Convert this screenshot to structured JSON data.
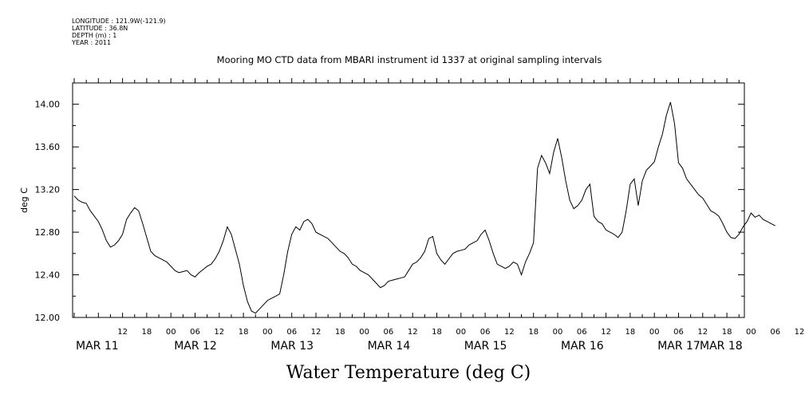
{
  "meta": {
    "longitude": "LONGITUDE : 121.9W(-121.9)",
    "latitude": "LATITUDE : 36.8N",
    "depth": "DEPTH (m) : 1",
    "year": "YEAR : 2011"
  },
  "chart_data": {
    "type": "line",
    "title": "Mooring MO CTD data from MBARI instrument id 1337 at original sampling intervals",
    "footer_title": "Water Temperature (deg C)",
    "xlabel": "",
    "ylabel": "deg C",
    "ylim": [
      12.0,
      14.2
    ],
    "yticks": [
      "12.00",
      "12.40",
      "12.80",
      "13.20",
      "13.60",
      "14.00"
    ],
    "xlim_hours_from_mar11_00": [
      0,
      174
    ],
    "xtick_hour_labels": [
      "12",
      "18",
      "00",
      "06",
      "12",
      "18",
      "00",
      "06",
      "12",
      "18",
      "00",
      "06",
      "12",
      "18",
      "00",
      "06",
      "12",
      "18",
      "00",
      "06",
      "12",
      "18",
      "00",
      "06",
      "12",
      "18",
      "00",
      "06",
      "12",
      "18",
      "00",
      "06"
    ],
    "date_labels": [
      "MAR 11",
      "MAR 12",
      "MAR 13",
      "MAR 14",
      "MAR 15",
      "MAR 16",
      "MAR 17",
      "MAR 18"
    ],
    "grid": false,
    "series": [
      {
        "values": [
          [
            0,
            13.14
          ],
          [
            1,
            13.1
          ],
          [
            2,
            13.08
          ],
          [
            3,
            13.07
          ],
          [
            4,
            13.0
          ],
          [
            5,
            12.95
          ],
          [
            6,
            12.9
          ],
          [
            7,
            12.82
          ],
          [
            8,
            12.72
          ],
          [
            9,
            12.66
          ],
          [
            10,
            12.68
          ],
          [
            11,
            12.72
          ],
          [
            12,
            12.78
          ],
          [
            13,
            12.92
          ],
          [
            14,
            12.98
          ],
          [
            15,
            13.03
          ],
          [
            16,
            13.0
          ],
          [
            17,
            12.88
          ],
          [
            18,
            12.75
          ],
          [
            19,
            12.62
          ],
          [
            20,
            12.58
          ],
          [
            21,
            12.56
          ],
          [
            22,
            12.54
          ],
          [
            23,
            12.52
          ],
          [
            24,
            12.48
          ],
          [
            25,
            12.44
          ],
          [
            26,
            12.42
          ],
          [
            27,
            12.43
          ],
          [
            28,
            12.44
          ],
          [
            29,
            12.4
          ],
          [
            30,
            12.38
          ],
          [
            31,
            12.42
          ],
          [
            32,
            12.45
          ],
          [
            33,
            12.48
          ],
          [
            34,
            12.5
          ],
          [
            35,
            12.55
          ],
          [
            36,
            12.62
          ],
          [
            37,
            12.72
          ],
          [
            38,
            12.85
          ],
          [
            39,
            12.78
          ],
          [
            40,
            12.64
          ],
          [
            41,
            12.5
          ],
          [
            42,
            12.3
          ],
          [
            43,
            12.15
          ],
          [
            44,
            12.06
          ],
          [
            45,
            12.04
          ],
          [
            46,
            12.08
          ],
          [
            47,
            12.12
          ],
          [
            48,
            12.16
          ],
          [
            49,
            12.18
          ],
          [
            50,
            12.2
          ],
          [
            51,
            12.22
          ],
          [
            52,
            12.4
          ],
          [
            53,
            12.62
          ],
          [
            54,
            12.78
          ],
          [
            55,
            12.85
          ],
          [
            56,
            12.82
          ],
          [
            57,
            12.9
          ],
          [
            58,
            12.92
          ],
          [
            59,
            12.88
          ],
          [
            60,
            12.8
          ],
          [
            61,
            12.78
          ],
          [
            62,
            12.76
          ],
          [
            63,
            12.74
          ],
          [
            64,
            12.7
          ],
          [
            65,
            12.66
          ],
          [
            66,
            12.62
          ],
          [
            67,
            12.6
          ],
          [
            68,
            12.56
          ],
          [
            69,
            12.5
          ],
          [
            70,
            12.48
          ],
          [
            71,
            12.44
          ],
          [
            72,
            12.42
          ],
          [
            73,
            12.4
          ],
          [
            74,
            12.36
          ],
          [
            75,
            12.32
          ],
          [
            76,
            12.28
          ],
          [
            77,
            12.3
          ],
          [
            78,
            12.34
          ],
          [
            79,
            12.35
          ],
          [
            80,
            12.36
          ],
          [
            81,
            12.37
          ],
          [
            82,
            12.38
          ],
          [
            83,
            12.44
          ],
          [
            84,
            12.5
          ],
          [
            85,
            12.52
          ],
          [
            86,
            12.56
          ],
          [
            87,
            12.62
          ],
          [
            88,
            12.74
          ],
          [
            89,
            12.76
          ],
          [
            90,
            12.6
          ],
          [
            91,
            12.54
          ],
          [
            92,
            12.5
          ],
          [
            93,
            12.55
          ],
          [
            94,
            12.6
          ],
          [
            95,
            12.62
          ],
          [
            96,
            12.63
          ],
          [
            97,
            12.64
          ],
          [
            98,
            12.68
          ],
          [
            99,
            12.7
          ],
          [
            100,
            12.72
          ],
          [
            101,
            12.78
          ],
          [
            102,
            12.82
          ],
          [
            103,
            12.72
          ],
          [
            104,
            12.6
          ],
          [
            105,
            12.5
          ],
          [
            106,
            12.48
          ],
          [
            107,
            12.46
          ],
          [
            108,
            12.48
          ],
          [
            109,
            12.52
          ],
          [
            110,
            12.5
          ],
          [
            111,
            12.4
          ],
          [
            112,
            12.52
          ],
          [
            113,
            12.6
          ],
          [
            114,
            12.7
          ],
          [
            115,
            13.4
          ],
          [
            116,
            13.52
          ],
          [
            117,
            13.45
          ],
          [
            118,
            13.35
          ],
          [
            119,
            13.55
          ],
          [
            120,
            13.68
          ],
          [
            121,
            13.5
          ],
          [
            122,
            13.28
          ],
          [
            123,
            13.1
          ],
          [
            124,
            13.02
          ],
          [
            125,
            13.05
          ],
          [
            126,
            13.1
          ],
          [
            127,
            13.2
          ],
          [
            128,
            13.25
          ],
          [
            129,
            12.95
          ],
          [
            130,
            12.9
          ],
          [
            131,
            12.88
          ],
          [
            132,
            12.82
          ],
          [
            133,
            12.8
          ],
          [
            134,
            12.78
          ],
          [
            135,
            12.75
          ],
          [
            136,
            12.8
          ],
          [
            137,
            13.0
          ],
          [
            138,
            13.25
          ],
          [
            139,
            13.3
          ],
          [
            140,
            13.05
          ],
          [
            141,
            13.28
          ],
          [
            142,
            13.38
          ],
          [
            143,
            13.42
          ],
          [
            144,
            13.46
          ],
          [
            145,
            13.6
          ],
          [
            146,
            13.72
          ],
          [
            147,
            13.9
          ],
          [
            148,
            14.02
          ],
          [
            149,
            13.82
          ],
          [
            150,
            13.45
          ],
          [
            151,
            13.4
          ],
          [
            152,
            13.3
          ],
          [
            153,
            13.25
          ],
          [
            154,
            13.2
          ],
          [
            155,
            13.15
          ],
          [
            156,
            13.12
          ],
          [
            157,
            13.06
          ],
          [
            158,
            13.0
          ],
          [
            159,
            12.98
          ],
          [
            160,
            12.95
          ],
          [
            161,
            12.88
          ],
          [
            162,
            12.8
          ],
          [
            163,
            12.75
          ],
          [
            164,
            12.74
          ],
          [
            165,
            12.78
          ],
          [
            166,
            12.85
          ],
          [
            167,
            12.9
          ],
          [
            168,
            12.98
          ],
          [
            169,
            12.94
          ],
          [
            170,
            12.96
          ],
          [
            171,
            12.92
          ],
          [
            172,
            12.9
          ],
          [
            173,
            12.88
          ],
          [
            174,
            12.86
          ]
        ]
      }
    ]
  }
}
